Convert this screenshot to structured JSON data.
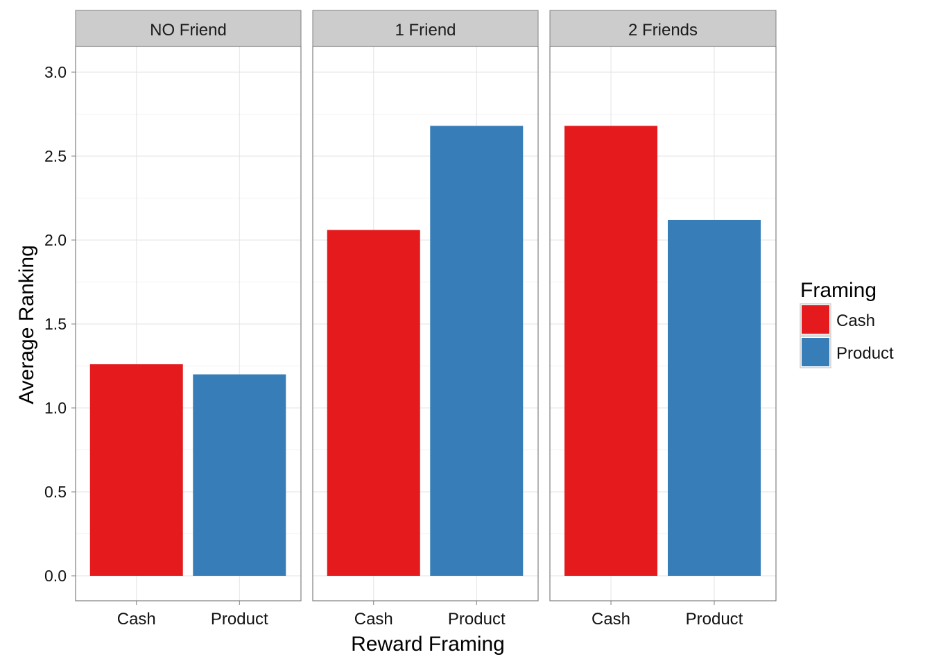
{
  "chart_data": {
    "type": "bar",
    "facets": [
      {
        "label": "NO Friend",
        "categories": [
          "Cash",
          "Product"
        ],
        "values": [
          1.26,
          1.2
        ]
      },
      {
        "label": "1 Friend",
        "categories": [
          "Cash",
          "Product"
        ],
        "values": [
          2.06,
          2.68
        ]
      },
      {
        "label": "2 Friends",
        "categories": [
          "Cash",
          "Product"
        ],
        "values": [
          2.68,
          2.12
        ]
      }
    ],
    "xlabel": "Reward Framing",
    "ylabel": "Average Ranking",
    "ylim": [
      0,
      3.0
    ],
    "yticks": [
      "0.0",
      "0.5",
      "1.0",
      "1.5",
      "2.0",
      "2.5",
      "3.0"
    ],
    "legend": {
      "title": "Framing",
      "position": "right",
      "entries": [
        {
          "label": "Cash",
          "color": "#e41a1c"
        },
        {
          "label": "Product",
          "color": "#377eb8"
        }
      ]
    },
    "grid": true
  }
}
